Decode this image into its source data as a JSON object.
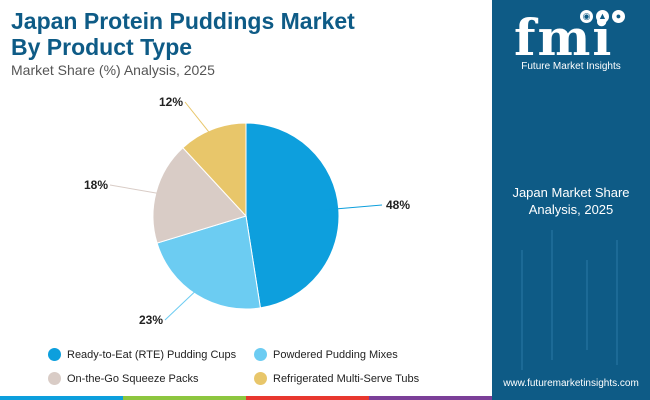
{
  "header": {
    "title_line1": "Japan Protein Puddings Market",
    "title_line2": "By Product Type",
    "subtitle": "Market Share (%) Analysis, 2025"
  },
  "chart_data": {
    "type": "pie",
    "title": "Japan Protein Puddings Market By Product Type",
    "subtitle": "Market Share (%) Analysis, 2025",
    "legend_position": "bottom",
    "slices": [
      {
        "label": "Ready-to-Eat (RTE) Pudding Cups",
        "value": 48,
        "display": "48%",
        "color": "#0d9fdd"
      },
      {
        "label": "Powdered Pudding Mixes",
        "value": 23,
        "display": "23%",
        "color": "#6cccf2"
      },
      {
        "label": "On-the-Go Squeeze Packs",
        "value": 18,
        "display": "18%",
        "color": "#d9ccc6"
      },
      {
        "label": "Refrigerated Multi-Serve Tubs",
        "value": 12,
        "display": "12%",
        "color": "#e8c66a"
      }
    ]
  },
  "side_panel": {
    "logo_text": "fmi",
    "brand_name": "Future Market Insights",
    "caption_line1": "Japan Market Share",
    "caption_line2": "Analysis, 2025",
    "url": "www.futuremarketinsights.com",
    "background_color": "#0e5b86"
  },
  "bottom_bar_colors": [
    "#0d9fdd",
    "#8dc63f",
    "#e8372e",
    "#7b3f98",
    "#0e5b86"
  ]
}
